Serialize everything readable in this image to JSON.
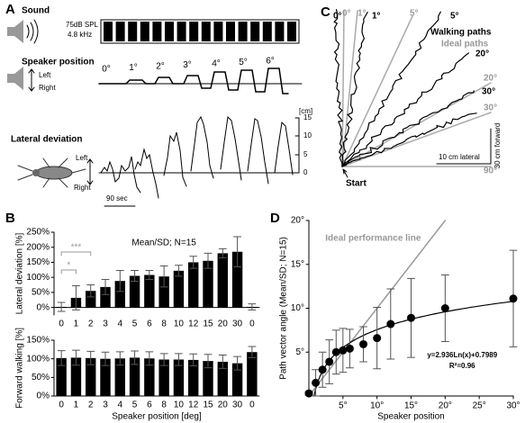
{
  "panel_a": {
    "label": "A",
    "sound": "Sound",
    "level": "75dB SPL",
    "frequency": "4.8 kHz",
    "speaker_position": "Speaker position",
    "left": "Left",
    "right": "Right",
    "angles": [
      "0°",
      "1°",
      "2°",
      "3°",
      "4°",
      "5°",
      "6°"
    ],
    "lateral_deviation": "Lateral deviation",
    "trace_left": "Left",
    "trace_right": "Right",
    "unit": "[cm]",
    "scale_ticks": [
      "15",
      "10",
      "5",
      "0"
    ],
    "time_scale": "90 sec"
  },
  "panel_c": {
    "label": "C",
    "walking_angles": [
      "0°",
      "1°",
      "5°",
      "20°",
      "30°"
    ],
    "ideal_angles": [
      "0°",
      "1°",
      "5°",
      "20°",
      "30°",
      "90°"
    ],
    "walking_paths": "Walking paths",
    "ideal_paths": "Ideal paths",
    "forward_scale": "30 cm forward",
    "lateral_scale": "10 cm lateral",
    "start": "Start"
  },
  "chart_data": [
    {
      "type": "bar",
      "panel_label": "B",
      "note": "Mean/SD; N=15",
      "significance": [
        "***",
        "*"
      ],
      "ylabel": "Lateral deviation [%]",
      "color": "#000000",
      "categories": [
        "0",
        "1",
        "2",
        "3",
        "4",
        "5",
        "6",
        "8",
        "10",
        "12",
        "15",
        "20",
        "30",
        "0"
      ],
      "values": [
        2,
        32,
        55,
        68,
        88,
        105,
        108,
        103,
        122,
        150,
        155,
        180,
        185,
        2
      ],
      "errors": [
        15,
        40,
        20,
        25,
        35,
        18,
        15,
        35,
        18,
        20,
        25,
        15,
        50,
        10
      ],
      "ylim": [
        -25,
        250
      ],
      "yticks": [
        {
          "value": 0,
          "label": "0%"
        },
        {
          "value": 50,
          "label": "50%"
        },
        {
          "value": 100,
          "label": "100%"
        },
        {
          "value": 150,
          "label": "150%"
        },
        {
          "value": 200,
          "label": "200%"
        },
        {
          "value": 250,
          "label": "250%"
        }
      ]
    },
    {
      "type": "bar",
      "ylabel": "Forward walking [%]",
      "xlabel": "Speaker position [deg]",
      "color": "#000000",
      "categories": [
        "0",
        "1",
        "2",
        "3",
        "4",
        "5",
        "6",
        "8",
        "10",
        "12",
        "15",
        "20",
        "30",
        "0"
      ],
      "values": [
        102,
        103,
        102,
        100,
        101,
        103,
        101,
        98,
        98,
        97,
        94,
        92,
        88,
        118
      ],
      "errors": [
        20,
        20,
        18,
        18,
        18,
        18,
        18,
        16,
        16,
        16,
        18,
        18,
        18,
        15
      ],
      "ylim": [
        0,
        150
      ],
      "yticks": [
        {
          "value": 0,
          "label": "0%"
        },
        {
          "value": 50,
          "label": "50%"
        },
        {
          "value": 100,
          "label": "100%"
        },
        {
          "value": 150,
          "label": "150%"
        }
      ]
    },
    {
      "type": "scatter",
      "panel_label": "D",
      "xlabel": "Speaker position",
      "ylabel": "Path vector angle (Mean/SD; N=15)",
      "ideal_label": "Ideal performance line",
      "ideal_color": "#999999",
      "color": "#000000",
      "fit": {
        "a": 2.936,
        "b": 0.7989,
        "label": "y=2.936Ln(x)+0.7989"
      },
      "r2_label": "R²=0.96",
      "x": [
        0,
        1,
        2,
        3,
        4,
        5,
        6,
        8,
        10,
        12,
        15,
        20,
        30
      ],
      "values": [
        0.3,
        1.5,
        3,
        3.9,
        5,
        5.2,
        5.4,
        5.9,
        6.6,
        8.2,
        8.9,
        10,
        11.1
      ],
      "errors": [
        0.2,
        1.5,
        2,
        2.5,
        2.5,
        2.5,
        2.2,
        2,
        3.5,
        4,
        4.5,
        3.8,
        5.5
      ],
      "xlim": [
        0,
        30
      ],
      "ylim": [
        0,
        20
      ],
      "xticks": [
        {
          "value": 5,
          "label": "5°"
        },
        {
          "value": 10,
          "label": "10°"
        },
        {
          "value": 15,
          "label": "15°"
        },
        {
          "value": 20,
          "label": "20°"
        },
        {
          "value": 25,
          "label": "25°"
        },
        {
          "value": 30,
          "label": "30°"
        }
      ],
      "yticks": [
        {
          "value": 5,
          "label": "5°"
        },
        {
          "value": 10,
          "label": "10°"
        },
        {
          "value": 15,
          "label": "15°"
        },
        {
          "value": 20,
          "label": "20°"
        }
      ]
    }
  ]
}
